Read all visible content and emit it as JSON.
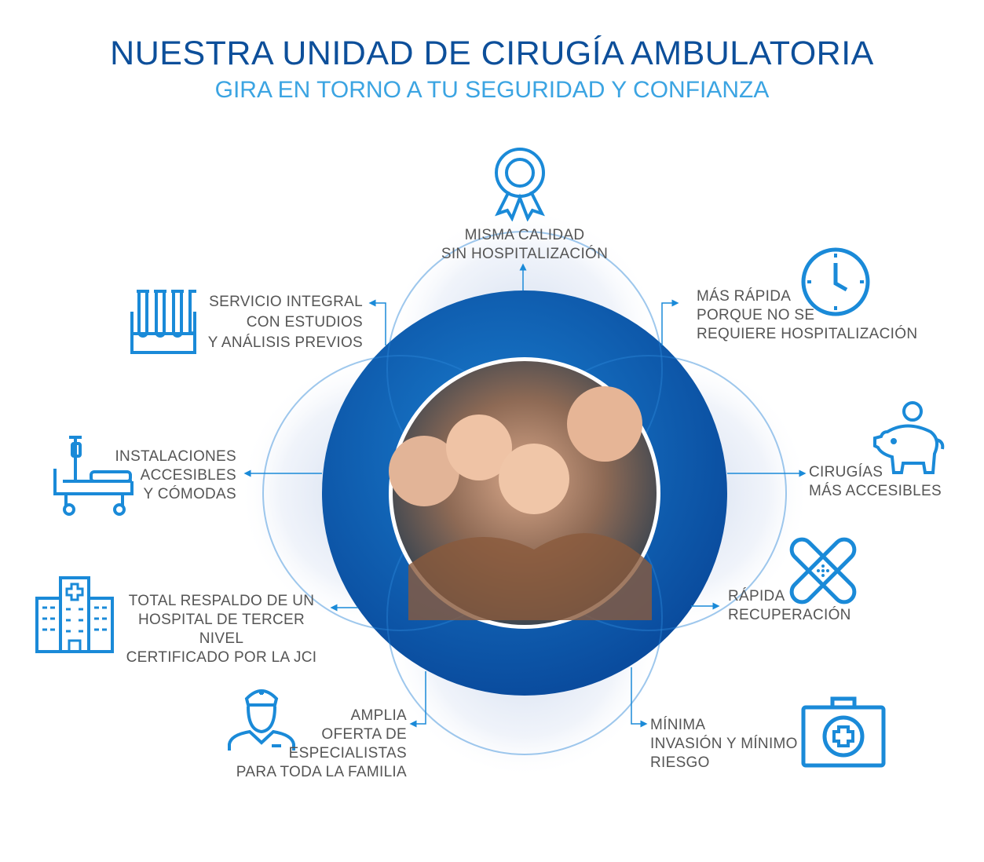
{
  "header": {
    "title": "NUESTRA UNIDAD DE CIRUGÍA AMBULATORIA",
    "subtitle": "GIRA EN TORNO A TU SEGURIDAD Y CONFIANZA"
  },
  "colors": {
    "title": "#0d4f9a",
    "subtitle": "#3ba4e2",
    "icon": "#1a8ad8",
    "ring": "#0e63b8",
    "text": "#555555"
  },
  "features": [
    {
      "icon": "award-ribbon-icon",
      "lines": [
        "MISMA CALIDAD",
        "SIN HOSPITALIZACIÓN"
      ]
    },
    {
      "icon": "clock-icon",
      "lines": [
        "MÁS RÁPIDA",
        "PORQUE NO SE",
        "REQUIERE HOSPITALIZACIÓN"
      ]
    },
    {
      "icon": "piggy-bank-icon",
      "lines": [
        "CIRUGÍAS",
        "MÁS ACCESIBLES"
      ]
    },
    {
      "icon": "bandage-icon",
      "lines": [
        "RÁPIDA",
        "RECUPERACIÓN"
      ]
    },
    {
      "icon": "first-aid-kit-icon",
      "lines": [
        "MÍNIMA",
        "INVASIÓN Y MÍNIMO",
        "RIESGO"
      ]
    },
    {
      "icon": "nurse-icon",
      "lines": [
        "AMPLIA",
        "OFERTA DE",
        "ESPECIALISTAS",
        "PARA TODA LA FAMILIA"
      ]
    },
    {
      "icon": "hospital-building-icon",
      "lines": [
        "TOTAL RESPALDO DE UN",
        "HOSPITAL DE TERCER NIVEL",
        "CERTIFICADO POR LA JCI"
      ]
    },
    {
      "icon": "hospital-bed-icon",
      "lines": [
        "INSTALACIONES",
        "ACCESIBLES",
        "Y CÓMODAS"
      ]
    },
    {
      "icon": "test-tubes-icon",
      "lines": [
        "SERVICIO INTEGRAL",
        "CON ESTUDIOS",
        "Y ANÁLISIS PREVIOS"
      ]
    }
  ]
}
